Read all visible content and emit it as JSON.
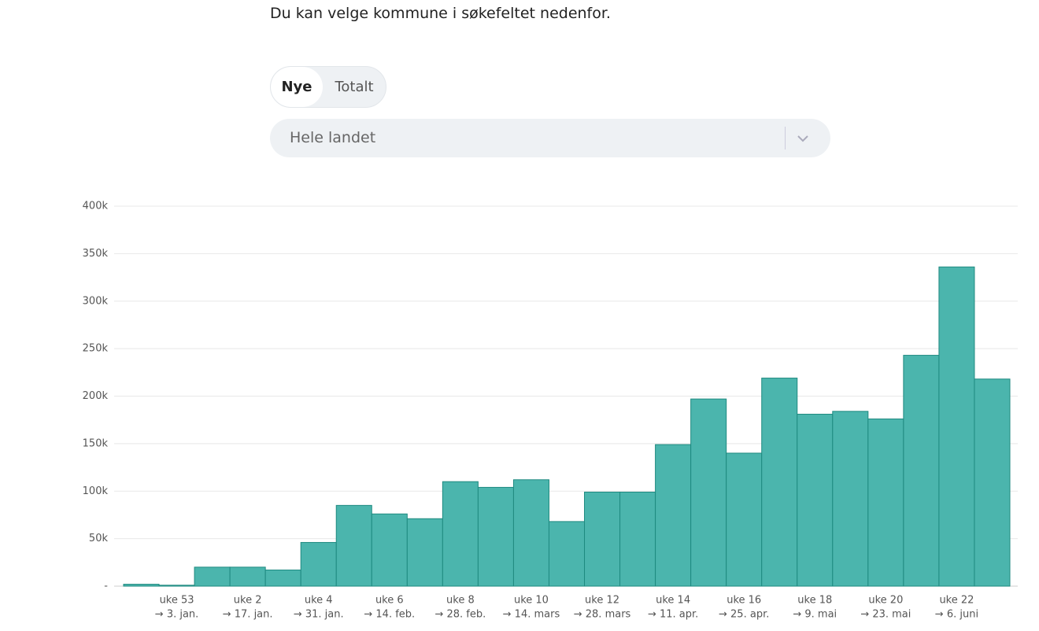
{
  "intro": "Du kan velge kommune i søkefeltet nedenfor.",
  "toggle": {
    "options": [
      "Nye",
      "Totalt"
    ]
  },
  "select": {
    "placeholder": "Hele landet"
  },
  "chart_data": {
    "type": "bar",
    "categories": [
      null,
      "uke 53",
      null,
      "uke 2",
      null,
      "uke 4",
      null,
      "uke 6",
      null,
      "uke 8",
      null,
      "uke 10",
      null,
      "uke 12",
      null,
      "uke 14",
      null,
      "uke 16",
      null,
      "uke 18",
      null,
      "uke 20",
      null,
      "uke 22",
      null
    ],
    "category_sublabels": [
      null,
      "→ 3. jan.",
      null,
      "→ 17. jan.",
      null,
      "→ 31. jan.",
      null,
      "→ 14. feb.",
      null,
      "→ 28. feb.",
      null,
      "→ 14. mars",
      null,
      "→ 28. mars",
      null,
      "→ 11. apr.",
      null,
      "→ 25. apr.",
      null,
      "→ 9. mai",
      null,
      "→ 23. mai",
      null,
      "→ 6. juni",
      null
    ],
    "values": [
      2000,
      1000,
      20000,
      20000,
      17000,
      46000,
      85000,
      76000,
      71000,
      110000,
      104000,
      112000,
      68000,
      99000,
      99000,
      149000,
      197000,
      140000,
      219000,
      181000,
      184000,
      176000,
      243000,
      336000,
      218000
    ],
    "color": "#4bb5ad",
    "ylim": [
      0,
      400000
    ],
    "yticks": [
      {
        "value": 0,
        "label": "-"
      },
      {
        "value": 50000,
        "label": "50k"
      },
      {
        "value": 100000,
        "label": "100k"
      },
      {
        "value": 150000,
        "label": "150k"
      },
      {
        "value": 200000,
        "label": "200k"
      },
      {
        "value": 250000,
        "label": "250k"
      },
      {
        "value": 300000,
        "label": "300k"
      },
      {
        "value": 350000,
        "label": "350k"
      },
      {
        "value": 400000,
        "label": "400k"
      }
    ],
    "grid": true
  }
}
